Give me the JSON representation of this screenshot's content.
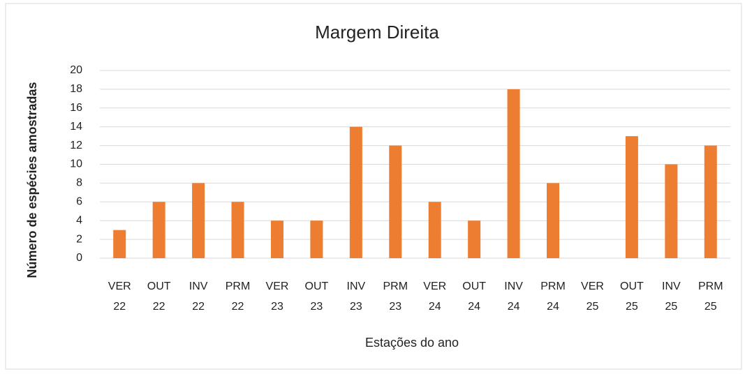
{
  "chart_data": {
    "type": "bar",
    "title": "Margem Direita",
    "x_label": "Estações do ano",
    "y_label": "Número de espécies amostradas",
    "categories": [
      "VER 22",
      "OUT 22",
      "INV 22",
      "PRM 22",
      "VER 23",
      "OUT 23",
      "INV 23",
      "PRM 23",
      "VER 24",
      "OUT 24",
      "INV 24",
      "PRM 24",
      "VER 25",
      "OUT 25",
      "INV 25",
      "PRM 25"
    ],
    "values": [
      3,
      6,
      8,
      6,
      4,
      4,
      14,
      12,
      6,
      4,
      18,
      8,
      0,
      13,
      10,
      12
    ],
    "color": "#ed7d31",
    "ylim": [
      0,
      20
    ],
    "yticks": [
      0,
      2,
      4,
      6,
      8,
      10,
      12,
      14,
      16,
      18,
      20
    ],
    "grid": true
  }
}
